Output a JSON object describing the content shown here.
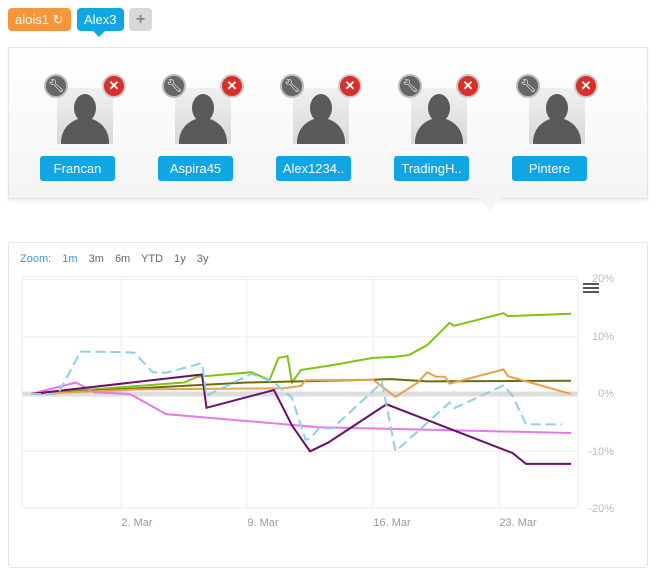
{
  "tabs": [
    {
      "label": "alois1",
      "icon": "refresh-icon",
      "color": "#f7953a"
    },
    {
      "label": "Alex3",
      "color": "#0fa6e3"
    },
    {
      "label": "+",
      "icon": "plus-icon"
    }
  ],
  "profiles": [
    {
      "name": "Francan"
    },
    {
      "name": "Aspira45"
    },
    {
      "name": "Alex1234.."
    },
    {
      "name": "TradingH.."
    },
    {
      "name": "Pintere"
    }
  ],
  "zoom": {
    "label": "Zoom:",
    "options": [
      "1m",
      "3m",
      "6m",
      "YTD",
      "1y",
      "3y"
    ],
    "selected": "1m"
  },
  "chart_data": {
    "type": "line",
    "x_ticks": [
      "2. Mar",
      "9. Mar",
      "16. Mar",
      "23. Mar"
    ],
    "y_ticks": [
      "20%",
      "10%",
      "0%",
      "-10%",
      "-20%"
    ],
    "ylim": [
      -20,
      20
    ],
    "grid": true,
    "series": [
      {
        "color": "#7cc416",
        "dash": false,
        "points": [
          [
            "Feb 25",
            0
          ],
          [
            "Mar 5 12:00",
            2
          ],
          [
            "Mar 6 06:00",
            3
          ],
          [
            "Mar 9 06:00",
            3.8
          ],
          [
            "Mar 10 06:00",
            2.4
          ],
          [
            "Mar 10 18:00",
            6.3
          ],
          [
            "Mar 11 06:00",
            6.6
          ],
          [
            "Mar 11 12:00",
            2
          ],
          [
            "Mar 12",
            4.2
          ],
          [
            "Mar 13 12:00",
            4.9
          ],
          [
            "Mar 16",
            6.3
          ],
          [
            "Mar 17 06:00",
            6.5
          ],
          [
            "Mar 18",
            6.8
          ],
          [
            "Mar 19",
            8.5
          ],
          [
            "Mar 20 06:00",
            12.4
          ],
          [
            "Mar 20 12:00",
            11.9
          ],
          [
            "Mar 23 06:00",
            14.1
          ],
          [
            "Mar 23 12:00",
            13.6
          ],
          [
            "Mar 27",
            14
          ]
        ]
      },
      {
        "color": "#6b6b10",
        "dash": false,
        "points": [
          [
            "Feb 25",
            0
          ],
          [
            "Mar 9",
            2
          ],
          [
            "Mar 16",
            2.5
          ],
          [
            "Mar 17",
            2.6
          ],
          [
            "Mar 19",
            2.2
          ],
          [
            "Mar 27",
            2.3
          ]
        ]
      },
      {
        "color": "#e8a24a",
        "dash": false,
        "points": [
          [
            "Feb 25",
            0
          ],
          [
            "Mar 3",
            0.8
          ],
          [
            "Mar 11",
            1
          ],
          [
            "Mar 12",
            1.4
          ],
          [
            "Mar 12 06:00",
            2.4
          ],
          [
            "Mar 16",
            2.5
          ],
          [
            "Mar 17 06:00",
            -0.5
          ],
          [
            "Mar 18 12:00",
            2
          ],
          [
            "Mar 19",
            3.8
          ],
          [
            "Mar 19 12:00",
            3
          ],
          [
            "Mar 20",
            3
          ],
          [
            "Mar 20 06:00",
            1.8
          ],
          [
            "Mar 23 06:00",
            4.3
          ],
          [
            "Mar 23 12:00",
            3.1
          ],
          [
            "Mar 27",
            0
          ]
        ]
      },
      {
        "color": "#e879e0",
        "dash": false,
        "points": [
          [
            "Feb 25",
            0
          ],
          [
            "Feb 27 12:00",
            2
          ],
          [
            "Feb 28 12:00",
            0.3
          ],
          [
            "Mar 2 12:00",
            0
          ],
          [
            "Mar 4 12:00",
            -3.5
          ],
          [
            "Mar 13",
            -5.8
          ],
          [
            "Mar 20",
            -6.3
          ],
          [
            "Mar 27",
            -6.8
          ]
        ]
      },
      {
        "color": "#6b0f6b",
        "dash": false,
        "points": [
          [
            "Feb 25",
            0
          ],
          [
            "Mar 6 12:00",
            3.4
          ],
          [
            "Mar 6 18:00",
            -2.4
          ],
          [
            "Mar 10 12:00",
            0.7
          ],
          [
            "Mar 11 12:00",
            -5.5
          ],
          [
            "Mar 12 12:00",
            -10
          ],
          [
            "Mar 13 12:00",
            -8.5
          ],
          [
            "Mar 16 18:00",
            -1.8
          ],
          [
            "Mar 23 18:00",
            -10.3
          ],
          [
            "Mar 24 12:00",
            -12.2
          ],
          [
            "Mar 27",
            -12.2
          ]
        ]
      },
      {
        "color": "#8ecfe8",
        "dash": true,
        "points": [
          [
            "Feb 25",
            0
          ],
          [
            "Feb 26 12:00",
            0
          ],
          [
            "Feb 27 18:00",
            7.4
          ],
          [
            "Mar 2 06:00",
            7.3
          ],
          [
            "Mar 2 18:00",
            7.2
          ],
          [
            "Mar 3 18:00",
            3.8
          ],
          [
            "Mar 4 12:00",
            3.7
          ],
          [
            "Mar 6 12:00",
            5.4
          ],
          [
            "Mar 6 18:00",
            -0.3
          ],
          [
            "Mar 9 06:00",
            3.5
          ],
          [
            "Mar 10 12:00",
            2
          ],
          [
            "Mar 11 12:00",
            -0.7
          ],
          [
            "Mar 12 06:00",
            -8
          ],
          [
            "Mar 12 12:00",
            -7.8
          ],
          [
            "Mar 13",
            -6
          ],
          [
            "Mar 13 18:00",
            -6
          ],
          [
            "Mar 16 12:00",
            2
          ],
          [
            "Mar 17 06:00",
            -10
          ],
          [
            "Mar 18 12:00",
            -6.5
          ],
          [
            "Mar 20 06:00",
            -1.5
          ],
          [
            "Mar 20 12:00",
            -2.5
          ],
          [
            "Mar 23 06:00",
            1.5
          ],
          [
            "Mar 23 18:00",
            -0.3
          ],
          [
            "Mar 24 12:00",
            -5.3
          ],
          [
            "Mar 26 12:00",
            -5.3
          ]
        ]
      }
    ]
  }
}
